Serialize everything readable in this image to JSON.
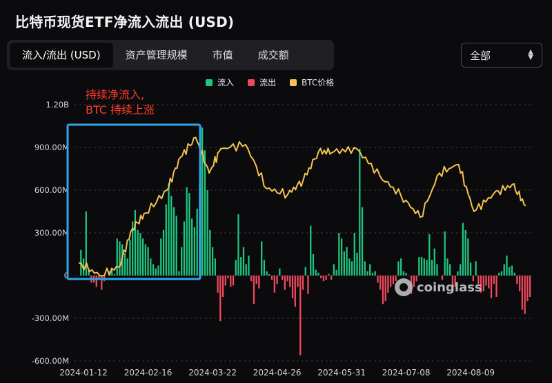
{
  "title": "比特币现货ETF净流入流出 (USD)",
  "tabs": [
    {
      "label": "流入/流出 (USD)",
      "active": true
    },
    {
      "label": "资产管理规模",
      "active": false
    },
    {
      "label": "市值",
      "active": false
    },
    {
      "label": "成交额",
      "active": false
    }
  ],
  "select": {
    "value": "全部"
  },
  "legend": {
    "inflow": "流入",
    "outflow": "流出",
    "price": "BTC价格"
  },
  "annotation": {
    "line1": "持续净流入,",
    "line2": "BTC 持续上涨"
  },
  "watermark": "coinglass",
  "colors": {
    "inflow": "#1fc47f",
    "outflow": "#f0485c",
    "price": "#f5c451",
    "highlight_box": "#2fa6ea",
    "annotation": "#ff3b30"
  },
  "chart_data": {
    "type": "bar",
    "y_tick_labels": [
      "1.20B",
      "900.00M",
      "600.00M",
      "300.00M",
      "0",
      "-300.00M",
      "-600.00M"
    ],
    "y_tick_values": [
      1200,
      900,
      600,
      300,
      0,
      -300,
      -600
    ],
    "ylim": [
      -600,
      1200
    ],
    "y_unit": "USD millions",
    "x_tick_labels": [
      "2024-01-12",
      "2024-02-16",
      "2024-03-22",
      "2024-04-26",
      "2024-05-31",
      "2024-07-08",
      "2024-08-09"
    ],
    "x_tick_index": [
      3,
      28,
      53,
      78,
      103,
      128,
      153
    ],
    "flows": [
      0,
      0,
      180,
      120,
      450,
      50,
      -50,
      -50,
      -80,
      -20,
      -100,
      -40,
      0,
      30,
      40,
      10,
      260,
      240,
      220,
      160,
      120,
      250,
      380,
      460,
      320,
      300,
      260,
      220,
      200,
      120,
      80,
      50,
      70,
      260,
      320,
      500,
      650,
      560,
      480,
      420,
      30,
      200,
      380,
      620,
      580,
      400,
      340,
      470,
      650,
      1040,
      880,
      600,
      320,
      200,
      120,
      -120,
      -320,
      -150,
      -70,
      -20,
      -80,
      -70,
      110,
      430,
      130,
      200,
      80,
      140,
      -40,
      -200,
      -60,
      -90,
      240,
      110,
      30,
      10,
      -30,
      -120,
      -60,
      50,
      -30,
      -100,
      -40,
      -80,
      -160,
      -220,
      -80,
      -560,
      -100,
      60,
      -130,
      350,
      150,
      40,
      20,
      -20,
      -40,
      -30,
      10,
      -30,
      80,
      40,
      300,
      260,
      170,
      200,
      120,
      100,
      300,
      160,
      890,
      480,
      100,
      30,
      80,
      20,
      30,
      -50,
      -100,
      -200,
      -180,
      -120,
      -80,
      -60,
      -40,
      100,
      120,
      30,
      20,
      0,
      -130,
      -80,
      -40,
      130,
      130,
      120,
      110,
      290,
      110,
      190,
      80,
      0,
      -30,
      310,
      120,
      80,
      -110,
      -80,
      30,
      80,
      370,
      320,
      260,
      90,
      -40,
      100,
      -60,
      -120,
      -110,
      -70,
      -90,
      -160,
      -60,
      -150,
      20,
      30,
      80,
      140,
      60,
      70,
      20,
      -60,
      -110,
      -240,
      -270,
      -180,
      -150
    ],
    "btc_price_series": [
      {
        "date": "2024-01-12",
        "value": 90
      },
      {
        "date": "2024-01-23",
        "value": 0
      },
      {
        "date": "2024-02-02",
        "value": 60
      },
      {
        "date": "2024-02-09",
        "value": 330
      },
      {
        "date": "2024-02-16",
        "value": 440
      },
      {
        "date": "2024-02-27",
        "value": 600
      },
      {
        "date": "2024-03-05",
        "value": 830
      },
      {
        "date": "2024-03-13",
        "value": 970
      },
      {
        "date": "2024-03-20",
        "value": 720
      },
      {
        "date": "2024-03-26",
        "value": 890
      },
      {
        "date": "2024-04-08",
        "value": 920
      },
      {
        "date": "2024-04-19",
        "value": 610
      },
      {
        "date": "2024-04-30",
        "value": 570
      },
      {
        "date": "2024-05-08",
        "value": 670
      },
      {
        "date": "2024-05-16",
        "value": 870
      },
      {
        "date": "2024-05-24",
        "value": 870
      },
      {
        "date": "2024-06-05",
        "value": 890
      },
      {
        "date": "2024-06-17",
        "value": 700
      },
      {
        "date": "2024-06-28",
        "value": 560
      },
      {
        "date": "2024-07-08",
        "value": 410
      },
      {
        "date": "2024-07-18",
        "value": 720
      },
      {
        "date": "2024-07-28",
        "value": 780
      },
      {
        "date": "2024-08-05",
        "value": 450
      },
      {
        "date": "2024-08-15",
        "value": 570
      },
      {
        "date": "2024-08-25",
        "value": 640
      },
      {
        "date": "2024-09-01",
        "value": 490
      }
    ]
  }
}
